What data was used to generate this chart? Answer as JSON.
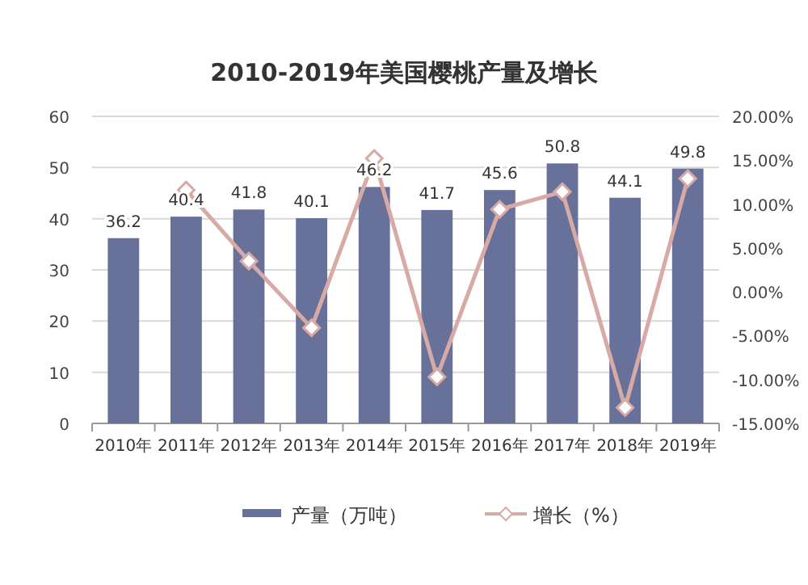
{
  "chart_data": {
    "type": "bar",
    "title": "2010-2019年美国樱桃产量及增长",
    "categories": [
      "2010年",
      "2011年",
      "2012年",
      "2013年",
      "2014年",
      "2015年",
      "2016年",
      "2017年",
      "2018年",
      "2019年"
    ],
    "series": [
      {
        "name": "产量（万吨）",
        "color": "#67719a",
        "values": [
          36.2,
          40.4,
          41.8,
          40.1,
          46.2,
          41.7,
          45.6,
          50.8,
          44.1,
          49.8
        ],
        "value_labels": [
          "36.2",
          "40.4",
          "41.8",
          "40.1",
          "46.2",
          "41.7",
          "45.6",
          "50.8",
          "44.1",
          "49.8"
        ]
      },
      {
        "name": "增长（%）",
        "type": "line",
        "axis": "y2",
        "color": "#d8aaa6",
        "marker": "diamond",
        "values": [
          null,
          11.6,
          3.5,
          -4.1,
          15.2,
          -9.7,
          9.4,
          11.4,
          -13.2,
          12.9
        ]
      }
    ],
    "ylim": [
      0,
      60
    ],
    "yticks": [
      0,
      10,
      20,
      30,
      40,
      50,
      60
    ],
    "y2lim": [
      -15,
      20
    ],
    "y2ticks": [
      {
        "value": -15,
        "label": "-15.00%"
      },
      {
        "value": -10,
        "label": "-10.00%"
      },
      {
        "value": -5,
        "label": "-5.00%"
      },
      {
        "value": 0,
        "label": "0.00%"
      },
      {
        "value": 5,
        "label": "5.00%"
      },
      {
        "value": 10,
        "label": "10.00%"
      },
      {
        "value": 15,
        "label": "15.00%"
      },
      {
        "value": 20,
        "label": "20.00%"
      }
    ],
    "grid": "y",
    "legend": "bottom"
  }
}
